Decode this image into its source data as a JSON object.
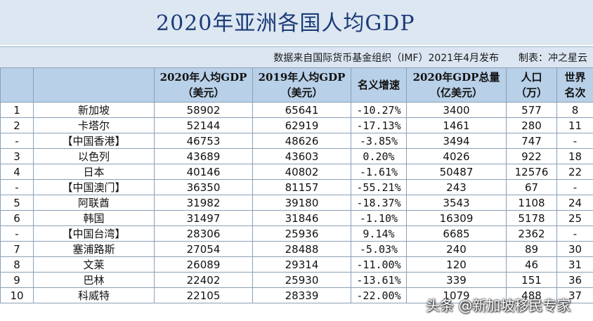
{
  "title": "2020年亚洲各国人均GDP",
  "source_line": "数据来自国际货币基金组织（IMF）2021年4月发布　　制表：冲之星云",
  "headers": {
    "rank": "",
    "name": "",
    "gdp_pc_2020": [
      "2020年人均GDP",
      "（美元）"
    ],
    "gdp_pc_2019": [
      "2019年人均GDP",
      "（美元）"
    ],
    "growth": "名义增速",
    "gdp_total": [
      "2020年GDP总量",
      "（亿美元）"
    ],
    "population": [
      "人口",
      "（万）"
    ],
    "world_rank": [
      "世界",
      "名次"
    ]
  },
  "rows": [
    {
      "rank": "1",
      "name": "新加坡",
      "gdp_pc_2020": "58902",
      "gdp_pc_2019": "65641",
      "growth": "-10.27%",
      "gdp_total": "3400",
      "population": "577",
      "world_rank": "8"
    },
    {
      "rank": "2",
      "name": "卡塔尔",
      "gdp_pc_2020": "52144",
      "gdp_pc_2019": "62919",
      "growth": "-17.13%",
      "gdp_total": "1461",
      "population": "280",
      "world_rank": "11"
    },
    {
      "rank": "-",
      "name": "【中国香港】",
      "gdp_pc_2020": "46753",
      "gdp_pc_2019": "48626",
      "growth": "-3.85%",
      "gdp_total": "3494",
      "population": "747",
      "world_rank": "-"
    },
    {
      "rank": "3",
      "name": "以色列",
      "gdp_pc_2020": "43689",
      "gdp_pc_2019": "43603",
      "growth": "0.20%",
      "gdp_total": "4026",
      "population": "922",
      "world_rank": "18"
    },
    {
      "rank": "4",
      "name": "日本",
      "gdp_pc_2020": "40146",
      "gdp_pc_2019": "40802",
      "growth": "-1.61%",
      "gdp_total": "50487",
      "population": "12576",
      "world_rank": "22"
    },
    {
      "rank": "-",
      "name": "【中国澳门】",
      "gdp_pc_2020": "36350",
      "gdp_pc_2019": "81157",
      "growth": "-55.21%",
      "gdp_total": "243",
      "population": "67",
      "world_rank": "-"
    },
    {
      "rank": "5",
      "name": "阿联酋",
      "gdp_pc_2020": "31982",
      "gdp_pc_2019": "39180",
      "growth": "-18.37%",
      "gdp_total": "3543",
      "population": "1108",
      "world_rank": "24"
    },
    {
      "rank": "6",
      "name": "韩国",
      "gdp_pc_2020": "31497",
      "gdp_pc_2019": "31846",
      "growth": "-1.10%",
      "gdp_total": "16309",
      "population": "5178",
      "world_rank": "25"
    },
    {
      "rank": "-",
      "name": "【中国台湾】",
      "gdp_pc_2020": "28306",
      "gdp_pc_2019": "25936",
      "growth": "9.14%",
      "gdp_total": "6685",
      "population": "2362",
      "world_rank": "-"
    },
    {
      "rank": "7",
      "name": "塞浦路斯",
      "gdp_pc_2020": "27054",
      "gdp_pc_2019": "28488",
      "growth": "-5.03%",
      "gdp_total": "240",
      "population": "89",
      "world_rank": "30"
    },
    {
      "rank": "8",
      "name": "文莱",
      "gdp_pc_2020": "26089",
      "gdp_pc_2019": "29314",
      "growth": "-11.00%",
      "gdp_total": "120",
      "population": "46",
      "world_rank": "31"
    },
    {
      "rank": "9",
      "name": "巴林",
      "gdp_pc_2020": "22402",
      "gdp_pc_2019": "25930",
      "growth": "-13.61%",
      "gdp_total": "339",
      "population": "151",
      "world_rank": "36"
    },
    {
      "rank": "10",
      "name": "科威特",
      "gdp_pc_2020": "22105",
      "gdp_pc_2019": "28339",
      "growth": "-22.00%",
      "gdp_total": "1079",
      "population": "488",
      "world_rank": "37"
    }
  ],
  "watermark": "头条 @新加坡移民专家"
}
